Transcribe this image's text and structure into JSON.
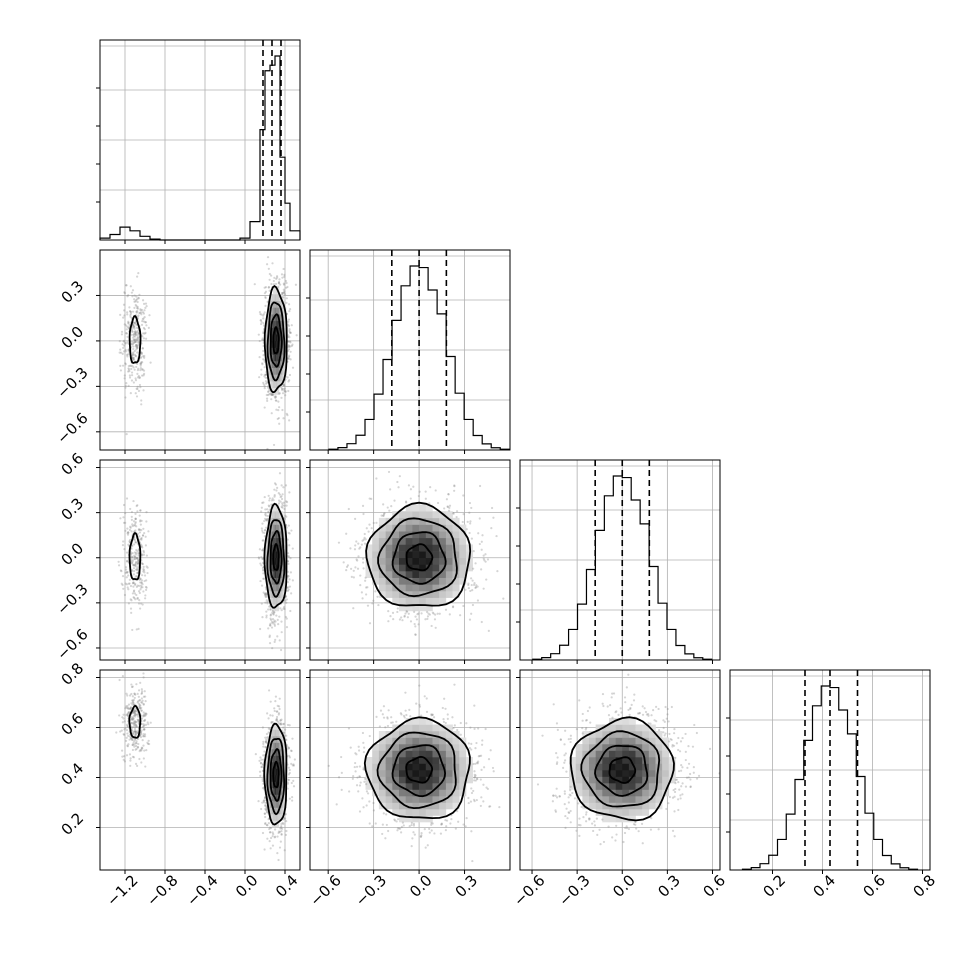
{
  "chart_data": {
    "type": "corner",
    "grid": true,
    "params": [
      {
        "index": 0,
        "range": [
          -1.45,
          0.55
        ],
        "ticks": [
          -1.2,
          -0.8,
          -0.4,
          0.0,
          0.4
        ],
        "tick_labels": [
          "−1.2",
          "−0.8",
          "−0.4",
          "0.0",
          "0.4"
        ],
        "quantiles": [
          0.18,
          0.27,
          0.36
        ],
        "modes": [
          {
            "center": 0.31,
            "sd": 0.055,
            "weight": 0.85
          },
          {
            "center": -1.1,
            "sd": 0.06,
            "weight": 0.15
          }
        ],
        "hist_bins": [
          -1.45,
          -1.35,
          -1.25,
          -1.15,
          -1.05,
          -0.95,
          -0.85,
          -0.75,
          -0.65,
          -0.55,
          -0.45,
          -0.35,
          -0.25,
          -0.15,
          -0.05,
          0.05,
          0.15,
          0.2,
          0.25,
          0.3,
          0.35,
          0.4,
          0.45,
          0.55
        ],
        "hist_counts": [
          0.01,
          0.03,
          0.07,
          0.05,
          0.02,
          0.005,
          0.0,
          0.0,
          0.0,
          0.0,
          0.0,
          0.0,
          0.0,
          0.0,
          0.01,
          0.1,
          0.6,
          0.92,
          0.95,
          1.0,
          0.45,
          0.2,
          0.05
        ]
      },
      {
        "index": 1,
        "range": [
          -0.72,
          0.6
        ],
        "ticks": [
          -0.6,
          -0.3,
          0.0,
          0.3
        ],
        "tick_labels": [
          "−0.6",
          "−0.3",
          "0.0",
          "0.3"
        ],
        "quantiles": [
          -0.18,
          0.0,
          0.18
        ],
        "center": 0.0,
        "sd": 0.17
      },
      {
        "index": 2,
        "range": [
          -0.68,
          0.65
        ],
        "ticks": [
          -0.6,
          -0.3,
          0.0,
          0.3,
          0.6
        ],
        "tick_labels": [
          "−0.6",
          "−0.3",
          "0.0",
          "0.3",
          "0.6"
        ],
        "quantiles": [
          -0.18,
          0.0,
          0.18
        ],
        "center": 0.0,
        "sd": 0.17
      },
      {
        "index": 3,
        "range": [
          0.03,
          0.83
        ],
        "ticks": [
          0.2,
          0.4,
          0.6,
          0.8
        ],
        "tick_labels": [
          "0.2",
          "0.4",
          "0.6",
          "0.8"
        ],
        "quantiles": [
          0.33,
          0.43,
          0.54
        ],
        "center": 0.43,
        "sd": 0.1
      }
    ],
    "pair_modes": {
      "p0_p3": [
        {
          "cx": 0.31,
          "cy": 0.41,
          "sx": 0.055,
          "sy": 0.1
        },
        {
          "cx": -1.1,
          "cy": 0.62,
          "sx": 0.06,
          "sy": 0.07
        }
      ]
    }
  }
}
